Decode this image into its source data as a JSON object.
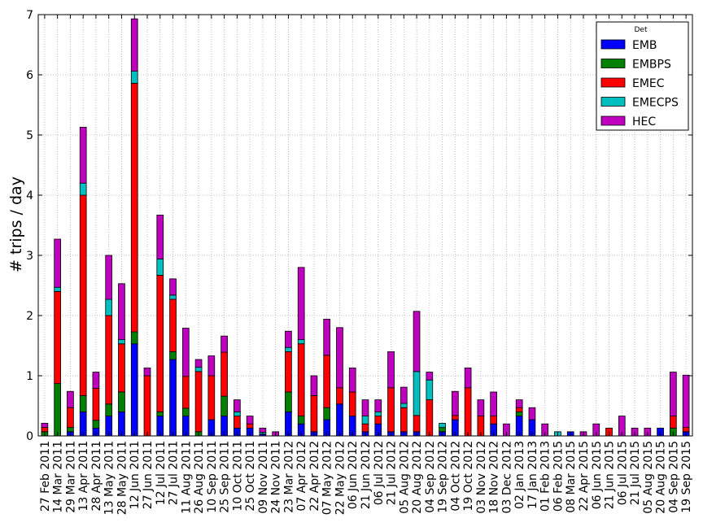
{
  "chart_data": {
    "type": "bar",
    "stacked": true,
    "title": "",
    "xlabel": "",
    "ylabel": "# trips / day",
    "ylim": [
      0,
      7
    ],
    "yticks": [
      0,
      1,
      2,
      3,
      4,
      5,
      6,
      7
    ],
    "grid": true,
    "legend": {
      "title": "Det",
      "placement": "top-right"
    },
    "categories": [
      "27 Feb 2011",
      "14 Mar 2011",
      "29 Mar 2011",
      "13 Apr 2011",
      "28 Apr 2011",
      "13 May 2011",
      "28 May 2011",
      "12 Jun 2011",
      "27 Jun 2011",
      "12 Jul 2011",
      "27 Jul 2011",
      "11 Aug 2011",
      "26 Aug 2011",
      "10 Sep 2011",
      "25 Sep 2011",
      "10 Oct 2011",
      "25 Oct 2011",
      "09 Nov 2011",
      "24 Nov 2011",
      "23 Mar 2012",
      "07 Apr 2012",
      "22 Apr 2012",
      "07 May 2012",
      "22 May 2012",
      "06 Jun 2012",
      "21 Jun 2012",
      "06 Jul 2012",
      "21 Jul 2012",
      "05 Aug 2012",
      "20 Aug 2012",
      "04 Sep 2012",
      "19 Sep 2012",
      "04 Oct 2012",
      "19 Oct 2012",
      "03 Nov 2012",
      "18 Nov 2012",
      "03 Dec 2012",
      "02 Jan 2013",
      "17 Jan 2013",
      "01 Feb 2013",
      "06 Feb 2015",
      "08 Mar 2015",
      "22 Apr 2015",
      "06 Jun 2015",
      "21 Jun 2015",
      "06 Jul 2015",
      "21 Jul 2015",
      "05 Aug 2015",
      "20 Aug 2015",
      "04 Sep 2015",
      "19 Sep 2015"
    ],
    "series": [
      {
        "name": "EMB",
        "color": "#0000ff",
        "values": [
          0,
          0,
          0.07,
          0.4,
          0.13,
          0.33,
          0.4,
          1.53,
          0,
          0.33,
          1.27,
          0.33,
          0,
          0.27,
          0.33,
          0.13,
          0.13,
          0.03,
          0,
          0.4,
          0.2,
          0.07,
          0.27,
          0.53,
          0.33,
          0.07,
          0.2,
          0.07,
          0.07,
          0.07,
          0,
          0.07,
          0.27,
          0,
          0,
          0.2,
          0,
          0.33,
          0.27,
          0,
          0,
          0.07,
          0,
          0,
          0,
          0,
          0,
          0,
          0.13,
          0,
          0.07
        ]
      },
      {
        "name": "EMBPS",
        "color": "#008000",
        "values": [
          0.07,
          0.87,
          0.07,
          0.27,
          0.13,
          0.2,
          0.33,
          0.2,
          0,
          0.07,
          0.13,
          0.13,
          0.07,
          0,
          0.33,
          0,
          0,
          0,
          0,
          0.33,
          0.13,
          0,
          0.2,
          0,
          0,
          0,
          0,
          0,
          0,
          0,
          0,
          0.07,
          0,
          0,
          0,
          0,
          0,
          0.07,
          0,
          0,
          0,
          0,
          0,
          0,
          0,
          0,
          0,
          0,
          0,
          0.13,
          0
        ]
      },
      {
        "name": "EMEC",
        "color": "#ff0000",
        "values": [
          0.07,
          1.53,
          0.33,
          3.33,
          0.53,
          1.47,
          0.8,
          4.13,
          1.0,
          2.27,
          0.87,
          0.53,
          1.0,
          0.73,
          0.73,
          0.2,
          0.07,
          0,
          0,
          0.67,
          1.2,
          0.6,
          0.87,
          0.27,
          0.4,
          0.13,
          0.13,
          0.73,
          0.4,
          0.27,
          0.6,
          0,
          0.07,
          0.8,
          0.33,
          0.13,
          0,
          0.07,
          0,
          0,
          0,
          0,
          0,
          0,
          0.13,
          0,
          0,
          0,
          0,
          0.2,
          0.07
        ]
      },
      {
        "name": "EMECPS",
        "color": "#00bfbf",
        "values": [
          0,
          0.07,
          0,
          0.2,
          0,
          0.27,
          0.07,
          0.2,
          0,
          0.27,
          0.07,
          0,
          0.07,
          0,
          0,
          0.07,
          0,
          0.03,
          0,
          0.07,
          0.07,
          0,
          0,
          0,
          0,
          0.13,
          0.07,
          0,
          0.07,
          0.73,
          0.33,
          0.07,
          0,
          0,
          0,
          0,
          0,
          0,
          0,
          0,
          0.07,
          0,
          0,
          0,
          0,
          0,
          0,
          0,
          0,
          0,
          0
        ]
      },
      {
        "name": "HEC",
        "color": "#bf00bf",
        "values": [
          0.07,
          0.8,
          0.27,
          0.93,
          0.27,
          0.73,
          0.93,
          0.87,
          0.13,
          0.73,
          0.27,
          0.8,
          0.13,
          0.33,
          0.27,
          0.2,
          0.13,
          0.07,
          0.07,
          0.27,
          1.2,
          0.33,
          0.6,
          1.0,
          0.4,
          0.27,
          0.2,
          0.6,
          0.27,
          1.0,
          0.13,
          0,
          0.4,
          0.33,
          0.27,
          0.4,
          0.2,
          0.13,
          0.2,
          0.2,
          0,
          0,
          0.07,
          0.2,
          0,
          0.33,
          0.13,
          0.13,
          0,
          0.73,
          0.87
        ]
      }
    ]
  }
}
